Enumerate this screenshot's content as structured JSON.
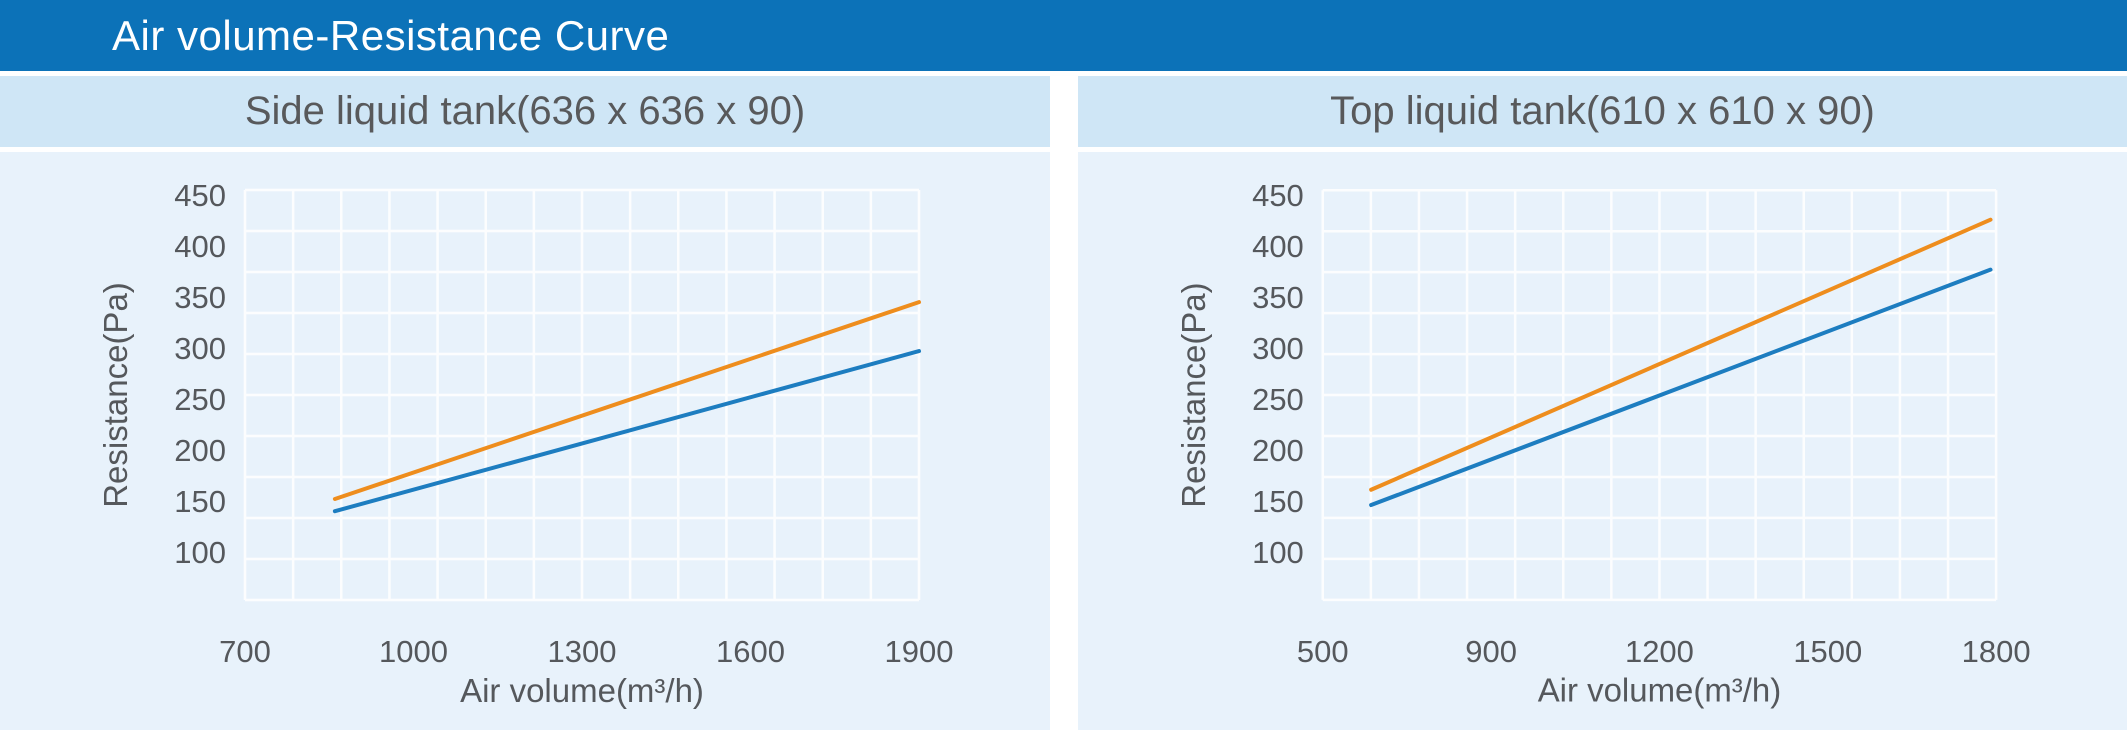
{
  "page": {
    "title": "Air volume-Resistance Curve"
  },
  "colors": {
    "title_bar": "#0c72b8",
    "title_text": "#ffffff",
    "band_bg": "#cfe6f6",
    "chart_bg": "#e8f2fb",
    "grid": "#ffffff",
    "text": "#55585c",
    "orange": "#ee8d1d",
    "blue": "#1d7dc0"
  },
  "chart_data": [
    {
      "type": "line",
      "title": "Side liquid tank(636 x 636 x 90)",
      "xlabel": "Air volume(m³/h)",
      "ylabel": "Resistance(Pa)",
      "x_ticks": [
        700,
        1000,
        1300,
        1600,
        1900
      ],
      "y_ticks": [
        450,
        400,
        350,
        300,
        250,
        200,
        150,
        100
      ],
      "ylim": [
        53,
        455
      ],
      "xlim": [
        700,
        1910
      ],
      "x_tick_spacing": "even",
      "grid": {
        "visible": true,
        "columns": 14,
        "rows": 10
      },
      "legend": "none",
      "series": [
        {
          "name": "upper-resistance-curve",
          "color": "#ee8d1d",
          "points": [
            [
              860,
              152
            ],
            [
              1900,
              345
            ]
          ]
        },
        {
          "name": "lower-resistance-curve",
          "color": "#1d7dc0",
          "points": [
            [
              860,
              140
            ],
            [
              1900,
              297
            ]
          ]
        }
      ]
    },
    {
      "type": "line",
      "title": "Top liquid tank(610 x 610 x 90)",
      "xlabel": "Air volume(m³/h)",
      "ylabel": "Resistance(Pa)",
      "x_ticks": [
        500,
        900,
        1200,
        1500,
        1800
      ],
      "y_ticks": [
        450,
        400,
        350,
        300,
        250,
        200,
        150,
        100
      ],
      "ylim": [
        53,
        455
      ],
      "xlim": [
        500,
        1800
      ],
      "x_tick_spacing": "even",
      "grid": {
        "visible": true,
        "columns": 14,
        "rows": 10
      },
      "legend": "none",
      "series": [
        {
          "name": "upper-resistance-curve",
          "color": "#ee8d1d",
          "points": [
            [
              615,
              161
            ],
            [
              1790,
              426
            ]
          ]
        },
        {
          "name": "lower-resistance-curve",
          "color": "#1d7dc0",
          "points": [
            [
              615,
              146
            ],
            [
              1790,
              377
            ]
          ]
        }
      ]
    }
  ]
}
